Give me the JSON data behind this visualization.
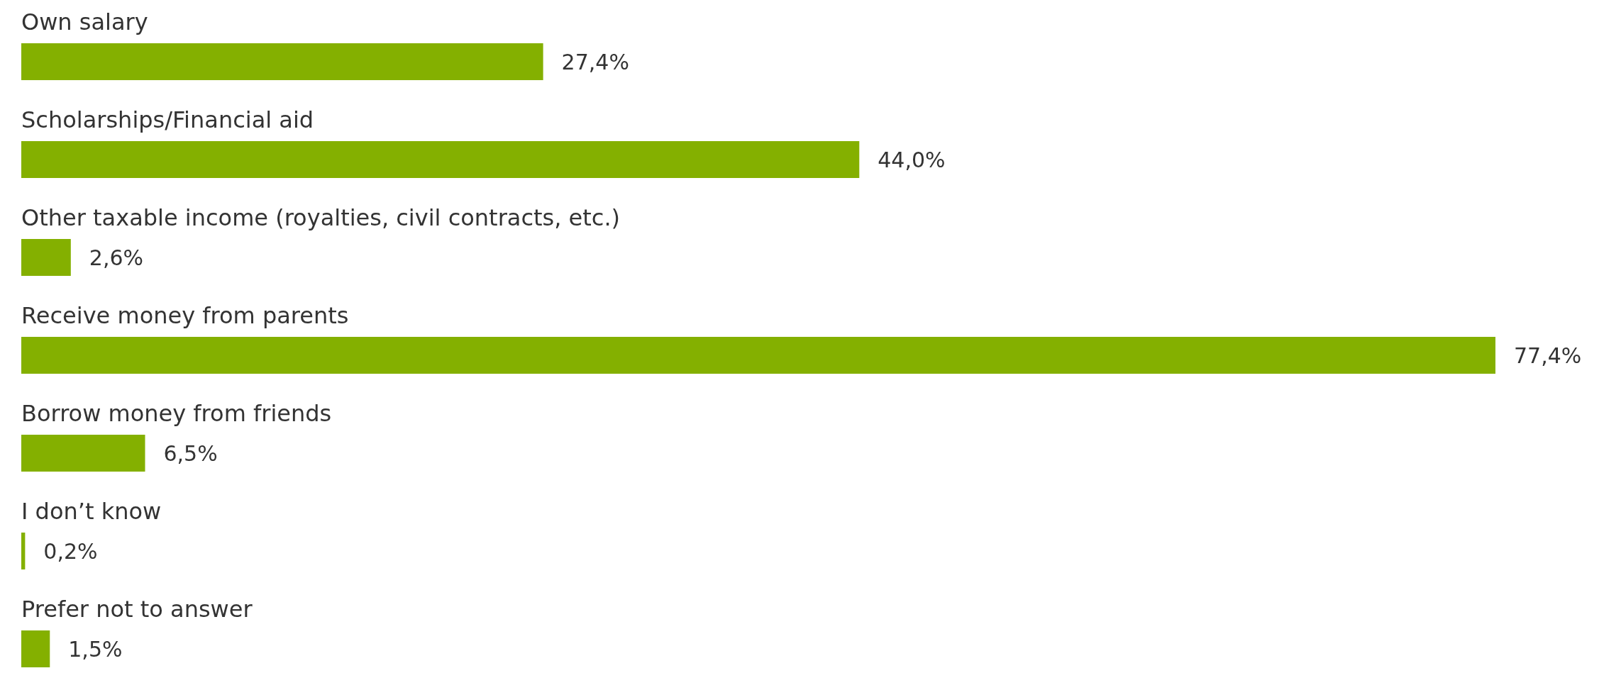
{
  "chart_data": {
    "type": "bar",
    "orientation": "horizontal",
    "categories": [
      "Own salary",
      "Scholarships/Financial aid",
      "Other taxable income (royalties, civil contracts, etc.)",
      "Receive money from parents",
      "Borrow money from friends",
      "I don’t know",
      "Prefer not to answer"
    ],
    "values": [
      27.4,
      44.0,
      2.6,
      77.4,
      6.5,
      0.2,
      1.5
    ],
    "value_labels": [
      "27,4%",
      "44,0%",
      "2,6%",
      "77,4%",
      "6,5%",
      "0,2%",
      "1,5%"
    ],
    "color": "#84b000"
  }
}
